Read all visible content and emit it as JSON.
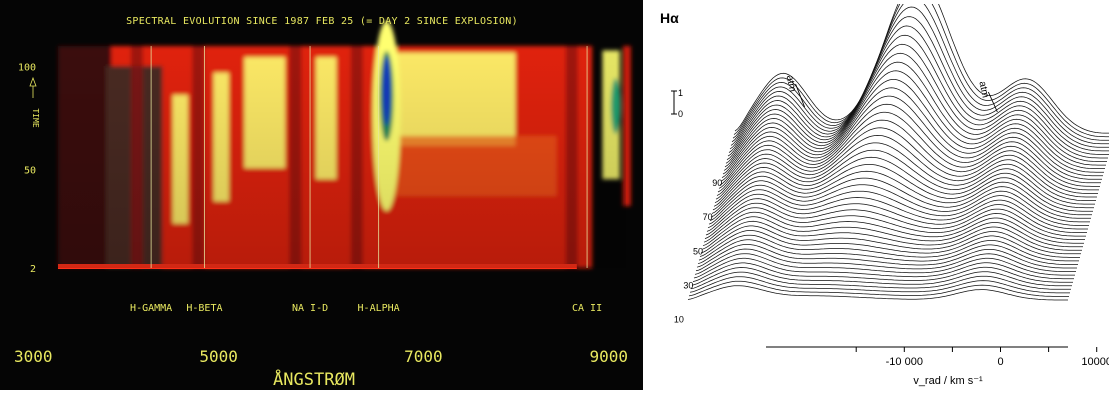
{
  "chart_data": [
    {
      "type": "heatmap",
      "title": "SPECTRAL EVOLUTION SINCE 1987 FEB 25 (= DAY 2 SINCE EXPLOSION)",
      "xlabel": "ÅNGSTRØM",
      "ylabel": "TIME",
      "xlim": [
        3000,
        9000
      ],
      "ylim": [
        2,
        110
      ],
      "x_ticks": [
        3000,
        5000,
        7000,
        9000
      ],
      "y_ticks": [
        2,
        50,
        100
      ],
      "lines": [
        {
          "name": "H-GAMMA",
          "wavelength": 4340
        },
        {
          "name": "H-BETA",
          "wavelength": 4861
        },
        {
          "name": "NA I-D",
          "wavelength": 5893
        },
        {
          "name": "H-ALPHA",
          "wavelength": 6563
        },
        {
          "name": "CA II",
          "wavelength": 8600
        }
      ],
      "colors": {
        "background": "#050505",
        "text": "#e8e860",
        "low": "#8a1010",
        "mid": "#e02010",
        "high": "#ffff70",
        "peak": "#1830c0"
      }
    },
    {
      "type": "line",
      "title": "Hα",
      "xlabel": "v_rad / km s⁻¹",
      "ylabel": "",
      "xlim": [
        -25000,
        14500
      ],
      "x_ticks": [
        -10000,
        0,
        10000
      ],
      "x_tick_labels": [
        "-10 000",
        "0",
        "10000"
      ],
      "depth_ticks": [
        10,
        30,
        50,
        70,
        90
      ],
      "depth_range": [
        2,
        100
      ],
      "scale_bar": {
        "top": "1",
        "bottom": "0"
      },
      "annotations": [
        {
          "text": "atm",
          "x": -16000
        },
        {
          "text": "atm",
          "x": 3000
        }
      ],
      "series_count": 48
    }
  ]
}
